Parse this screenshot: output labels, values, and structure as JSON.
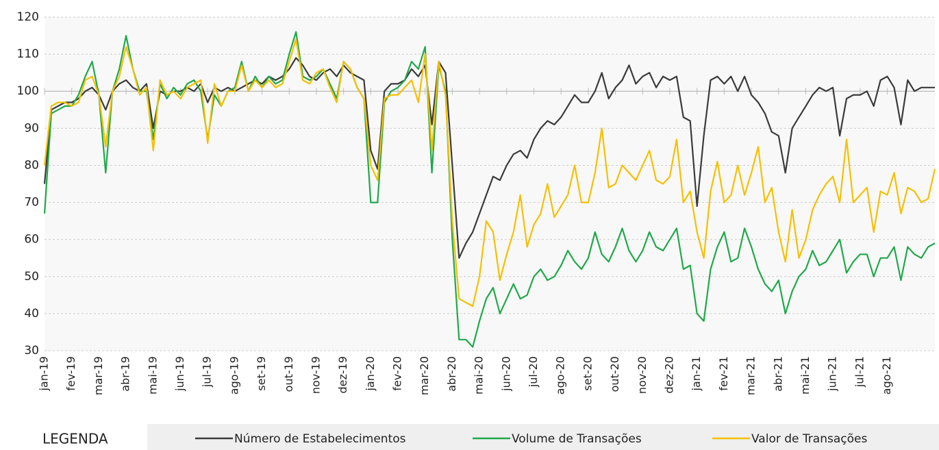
{
  "chart_data": {
    "type": "line",
    "categories": [
      "jan-19",
      null,
      null,
      null,
      "fev-19",
      null,
      null,
      null,
      "mar-19",
      null,
      null,
      null,
      "abr-19",
      null,
      null,
      null,
      "mai-19",
      null,
      null,
      null,
      "jun-19",
      null,
      null,
      null,
      "jul-19",
      null,
      null,
      null,
      "ago-19",
      null,
      null,
      null,
      "set-19",
      null,
      null,
      null,
      "out-19",
      null,
      null,
      null,
      "nov-19",
      null,
      null,
      null,
      "dez-19",
      null,
      null,
      null,
      "jan-20",
      null,
      null,
      null,
      "fev-20",
      null,
      null,
      null,
      "mar-20",
      null,
      null,
      null,
      "abr-20",
      null,
      null,
      null,
      "mai-20",
      null,
      null,
      null,
      "jun-20",
      null,
      null,
      null,
      "jul-20",
      null,
      null,
      null,
      "ago-20",
      null,
      null,
      null,
      "set-20",
      null,
      null,
      null,
      "out-20",
      null,
      null,
      null,
      "nov-20",
      null,
      null,
      null,
      "dez-20",
      null,
      null,
      null,
      "jan-21",
      null,
      null,
      null,
      "fev-21",
      null,
      null,
      null,
      "mar-21",
      null,
      null,
      null,
      "abr-21",
      null,
      null,
      null,
      "mai-21",
      null,
      null,
      null,
      "jun-21",
      null,
      null,
      null,
      "jul-21",
      null,
      null,
      null,
      "ago-21",
      null,
      null,
      null,
      null,
      null,
      null,
      null
    ],
    "series": [
      {
        "name": "Número de Estabelecimentos",
        "color": "#3a3a3a",
        "values": [
          75,
          95,
          96,
          97,
          97,
          98,
          100,
          101,
          99,
          95,
          100,
          102,
          103,
          101,
          100,
          102,
          90,
          100,
          99,
          100,
          100,
          101,
          100,
          102,
          97,
          101,
          100,
          101,
          100,
          101,
          102,
          103,
          102,
          104,
          103,
          104,
          106,
          109,
          107,
          104,
          103,
          105,
          106,
          104,
          107,
          105,
          104,
          103,
          84,
          79,
          100,
          102,
          102,
          103,
          106,
          104,
          107,
          91,
          108,
          105,
          80,
          55,
          59,
          62,
          67,
          72,
          77,
          76,
          80,
          83,
          84,
          82,
          87,
          90,
          92,
          91,
          93,
          96,
          99,
          97,
          97,
          100,
          105,
          98,
          101,
          103,
          107,
          102,
          104,
          105,
          101,
          104,
          103,
          104,
          93,
          92,
          69,
          88,
          103,
          104,
          102,
          104,
          100,
          104,
          99,
          97,
          94,
          89,
          88,
          78,
          90,
          93,
          96,
          99,
          101,
          100,
          101,
          88,
          98,
          99,
          99,
          100,
          96,
          103,
          104,
          101,
          91,
          103,
          100,
          101,
          101,
          101
        ]
      },
      {
        "name": "Volume de Transações",
        "color": "#1fa84a",
        "values": [
          67,
          94,
          95,
          96,
          96,
          99,
          104,
          108,
          99,
          78,
          100,
          106,
          115,
          106,
          100,
          100,
          87,
          102,
          98,
          101,
          99,
          102,
          103,
          100,
          87,
          99,
          96,
          100,
          101,
          108,
          100,
          104,
          101,
          104,
          102,
          103,
          110,
          116,
          104,
          103,
          104,
          106,
          102,
          98,
          108,
          106,
          101,
          98,
          70,
          70,
          97,
          100,
          101,
          103,
          108,
          106,
          112,
          78,
          107,
          100,
          60,
          33,
          33,
          31,
          38,
          44,
          47,
          40,
          44,
          48,
          44,
          45,
          50,
          52,
          49,
          50,
          53,
          57,
          54,
          52,
          55,
          62,
          56,
          54,
          58,
          63,
          57,
          54,
          57,
          62,
          58,
          57,
          60,
          63,
          52,
          53,
          40,
          38,
          52,
          58,
          62,
          54,
          55,
          63,
          58,
          52,
          48,
          46,
          49,
          40,
          46,
          50,
          52,
          57,
          53,
          54,
          57,
          60,
          51,
          54,
          56,
          56,
          50,
          55,
          55,
          58,
          49,
          58,
          56,
          55,
          58,
          59
        ]
      },
      {
        "name": "Valor de Transações",
        "color": "#f5c000",
        "values": [
          80,
          96,
          97,
          97,
          96,
          97,
          103,
          104,
          99,
          85,
          100,
          104,
          112,
          106,
          99,
          101,
          84,
          103,
          99,
          100,
          98,
          101,
          102,
          103,
          86,
          102,
          96,
          100,
          100,
          107,
          100,
          103,
          101,
          103,
          101,
          102,
          108,
          114,
          103,
          102,
          105,
          106,
          101,
          97,
          108,
          106,
          101,
          98,
          80,
          76,
          98,
          99,
          99,
          101,
          103,
          97,
          110,
          84,
          108,
          99,
          65,
          44,
          43,
          42,
          50,
          65,
          62,
          49,
          56,
          62,
          72,
          58,
          64,
          67,
          75,
          66,
          69,
          72,
          80,
          70,
          70,
          78,
          90,
          74,
          75,
          80,
          78,
          76,
          80,
          84,
          76,
          75,
          77,
          87,
          70,
          73,
          62,
          55,
          73,
          81,
          70,
          72,
          80,
          72,
          78,
          85,
          70,
          74,
          62,
          54,
          68,
          55,
          60,
          68,
          72,
          75,
          77,
          70,
          87,
          70,
          72,
          74,
          62,
          73,
          72,
          78,
          67,
          74,
          73,
          70,
          71,
          79
        ]
      }
    ],
    "ylim": [
      30,
      120
    ],
    "yticks": [
      30,
      40,
      50,
      60,
      70,
      80,
      90,
      100,
      110,
      120
    ],
    "grid": true,
    "reference_line": 100,
    "legend_title": "LEGENDA",
    "legend": "bottom"
  }
}
